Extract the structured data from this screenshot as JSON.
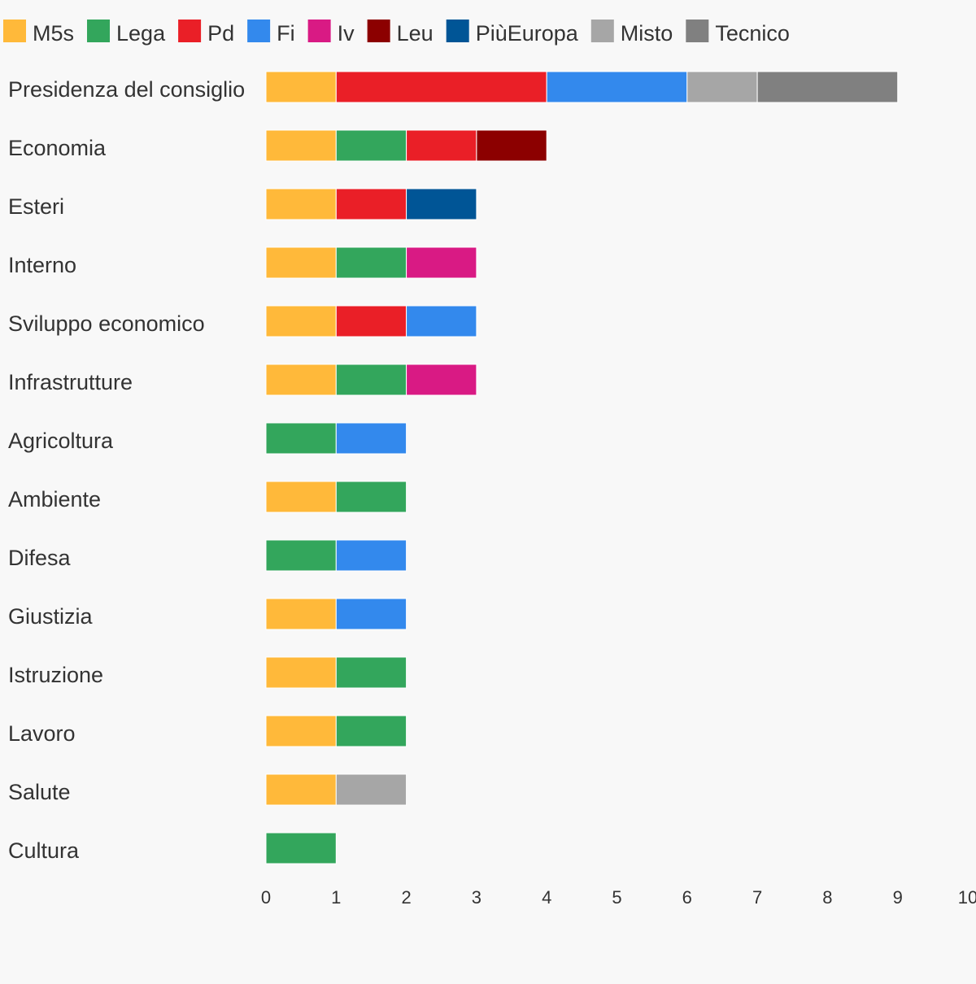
{
  "chart_data": {
    "type": "bar",
    "orientation": "horizontal",
    "stacked": true,
    "categories": [
      "Presidenza del consiglio",
      "Economia",
      "Esteri",
      "Interno",
      "Sviluppo economico",
      "Infrastrutture",
      "Agricoltura",
      "Ambiente",
      "Difesa",
      "Giustizia",
      "Istruzione",
      "Lavoro",
      "Salute",
      "Cultura"
    ],
    "series": [
      {
        "name": "M5s",
        "color": "#ffb93a",
        "values": [
          1,
          1,
          1,
          1,
          1,
          1,
          0,
          1,
          0,
          1,
          1,
          1,
          1,
          0
        ]
      },
      {
        "name": "Lega",
        "color": "#33a65c",
        "values": [
          0,
          1,
          0,
          1,
          0,
          1,
          1,
          1,
          1,
          0,
          1,
          1,
          0,
          1
        ]
      },
      {
        "name": "Pd",
        "color": "#ea1f27",
        "values": [
          3,
          1,
          1,
          0,
          1,
          0,
          0,
          0,
          0,
          0,
          0,
          0,
          0,
          0
        ]
      },
      {
        "name": "Fi",
        "color": "#3389ed",
        "values": [
          2,
          0,
          0,
          0,
          1,
          0,
          1,
          0,
          1,
          1,
          0,
          0,
          0,
          0
        ]
      },
      {
        "name": "Iv",
        "color": "#d91a84",
        "values": [
          0,
          0,
          0,
          1,
          0,
          1,
          0,
          0,
          0,
          0,
          0,
          0,
          0,
          0
        ]
      },
      {
        "name": "Leu",
        "color": "#8c0000",
        "values": [
          0,
          1,
          0,
          0,
          0,
          0,
          0,
          0,
          0,
          0,
          0,
          0,
          0,
          0
        ]
      },
      {
        "name": "PiùEuropa",
        "color": "#005596",
        "values": [
          0,
          0,
          1,
          0,
          0,
          0,
          0,
          0,
          0,
          0,
          0,
          0,
          0,
          0
        ]
      },
      {
        "name": "Misto",
        "color": "#a6a6a6",
        "values": [
          1,
          0,
          0,
          0,
          0,
          0,
          0,
          0,
          0,
          0,
          0,
          0,
          1,
          0
        ]
      },
      {
        "name": "Tecnico",
        "color": "#808080",
        "values": [
          2,
          0,
          0,
          0,
          0,
          0,
          0,
          0,
          0,
          0,
          0,
          0,
          0,
          0
        ]
      }
    ],
    "xlim": [
      0,
      10
    ],
    "xticks": [
      "0",
      "1",
      "2",
      "3",
      "4",
      "5",
      "6",
      "7",
      "8",
      "9",
      "10"
    ],
    "grid": false,
    "legend_position": "top-left"
  }
}
